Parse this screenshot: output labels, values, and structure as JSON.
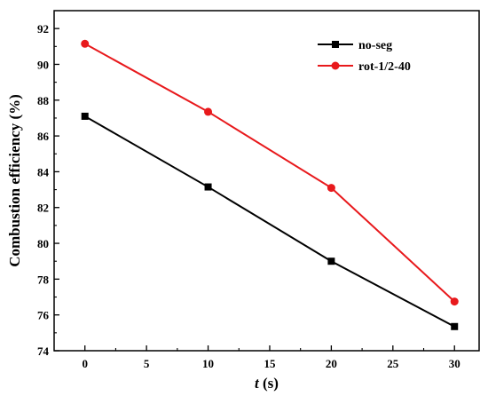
{
  "chart_data": {
    "type": "line",
    "title": "",
    "xlabel_italic": "t",
    "xlabel_rest": " (s)",
    "ylabel": "Combustion efficiency (%)",
    "xlim": [
      -2.5,
      32
    ],
    "ylim": [
      74,
      93
    ],
    "xticks": [
      0,
      5,
      10,
      15,
      20,
      25,
      30
    ],
    "yticks": [
      74,
      76,
      78,
      80,
      82,
      84,
      86,
      88,
      90,
      92
    ],
    "x": [
      0,
      10,
      20,
      30
    ],
    "grid": false,
    "legend_position": "top-right",
    "series": [
      {
        "name": "no-seg",
        "values": [
          87.1,
          83.15,
          79.0,
          75.35
        ],
        "color": "#000000",
        "marker": "square"
      },
      {
        "name": "rot-1/2-40",
        "values": [
          91.15,
          87.35,
          83.1,
          76.75
        ],
        "color": "#e8191c",
        "marker": "circle"
      }
    ]
  }
}
